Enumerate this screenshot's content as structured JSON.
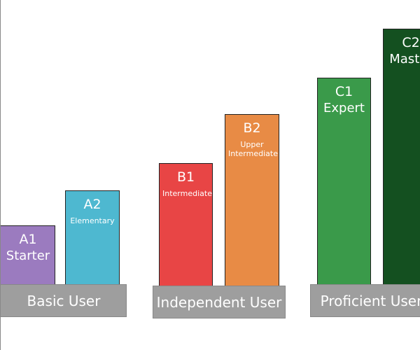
{
  "groups": [
    {
      "label": "Basic User",
      "levels": [
        {
          "code": "A1",
          "name": "Starter"
        },
        {
          "code": "A2",
          "name": "Elementary"
        }
      ]
    },
    {
      "label": "Independent User",
      "levels": [
        {
          "code": "B1",
          "name": "Intermediate"
        },
        {
          "code": "B2",
          "name": "Upper Intermediate"
        }
      ]
    },
    {
      "label": "Proficient User",
      "levels": [
        {
          "code": "C1",
          "name": "Expert"
        },
        {
          "code": "C2",
          "name": "Master"
        }
      ]
    }
  ]
}
